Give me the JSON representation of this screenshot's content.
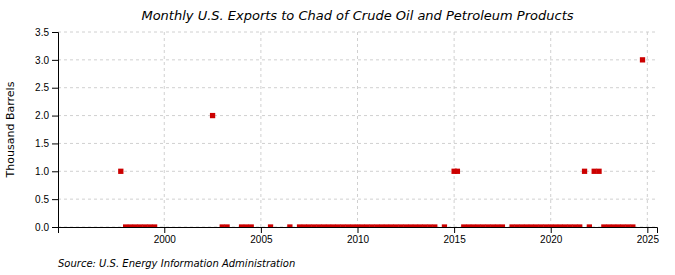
{
  "chart_data": {
    "type": "scatter",
    "title": "Monthly U.S. Exports to Chad of Crude Oil and Petroleum Products",
    "ylabel": "Thousand Barrels",
    "annotation": "Source: U.S. Energy Information Administration",
    "color": "#cc0000",
    "marker": "square",
    "grid": true,
    "xlim": [
      1994.5,
      2025.5
    ],
    "ylim": [
      0,
      3.5
    ],
    "xticks": [
      2000,
      2005,
      2010,
      2015,
      2020,
      2025
    ],
    "yticks": [
      {
        "value": 0.0,
        "label": "0.0"
      },
      0.5,
      {
        "value": 1.0,
        "label": "1.0"
      },
      1.5,
      {
        "value": 2.0,
        "label": "2.0"
      },
      2.5,
      {
        "value": 3.0,
        "label": "3.0"
      },
      3.5
    ],
    "x": [
      1997.75,
      1998.0,
      1998.25,
      1998.5,
      1998.75,
      1999.0,
      1999.25,
      1999.5,
      2002.5,
      2003.0,
      2003.25,
      2004.0,
      2004.25,
      2004.5,
      2005.5,
      2006.5,
      2007.0,
      2007.25,
      2007.5,
      2007.75,
      2008.0,
      2008.25,
      2008.5,
      2008.75,
      2009.0,
      2009.25,
      2009.5,
      2009.75,
      2010.0,
      2010.25,
      2010.5,
      2010.75,
      2011.0,
      2011.25,
      2011.5,
      2011.75,
      2012.0,
      2012.25,
      2012.5,
      2012.75,
      2013.0,
      2013.25,
      2013.5,
      2013.75,
      2014.0,
      2014.5,
      2015.0,
      2015.17,
      2015.5,
      2015.75,
      2016.0,
      2016.25,
      2016.5,
      2016.75,
      2017.0,
      2017.25,
      2017.5,
      2018.0,
      2018.25,
      2018.5,
      2018.75,
      2019.0,
      2019.25,
      2019.5,
      2019.75,
      2020.0,
      2020.25,
      2020.5,
      2020.75,
      2021.0,
      2021.25,
      2021.5,
      2021.75,
      2022.0,
      2022.25,
      2022.5,
      2022.75,
      2023.0,
      2023.25,
      2023.5,
      2023.75,
      2024.0,
      2024.25,
      2024.75
    ],
    "values": [
      1.0,
      0.0,
      0.0,
      0.0,
      0.0,
      0.0,
      0.0,
      0.0,
      2.0,
      0.0,
      0.0,
      0.0,
      0.0,
      0.0,
      0.0,
      0.0,
      0.0,
      0.0,
      0.0,
      0.0,
      0.0,
      0.0,
      0.0,
      0.0,
      0.0,
      0.0,
      0.0,
      0.0,
      0.0,
      0.0,
      0.0,
      0.0,
      0.0,
      0.0,
      0.0,
      0.0,
      0.0,
      0.0,
      0.0,
      0.0,
      0.0,
      0.0,
      0.0,
      0.0,
      0.0,
      0.0,
      1.0,
      1.0,
      0.0,
      0.0,
      0.0,
      0.0,
      0.0,
      0.0,
      0.0,
      0.0,
      0.0,
      0.0,
      0.0,
      0.0,
      0.0,
      0.0,
      0.0,
      0.0,
      0.0,
      0.0,
      0.0,
      0.0,
      0.0,
      0.0,
      0.0,
      0.0,
      1.0,
      0.0,
      1.0,
      1.0,
      0.0,
      0.0,
      0.0,
      0.0,
      0.0,
      0.0,
      0.0,
      3.0
    ]
  }
}
